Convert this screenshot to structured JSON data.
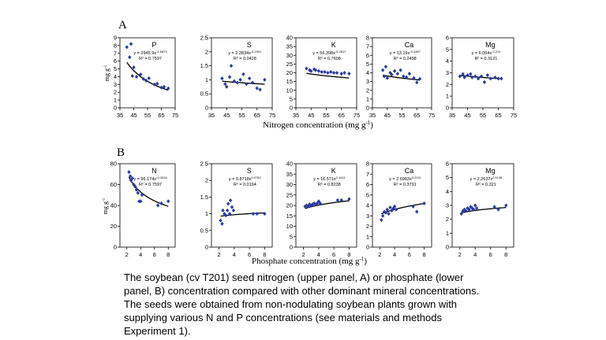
{
  "panels": [
    {
      "letter": "A",
      "xlabel": "Nitrogen concentration (mg g",
      "xlabel_sup": "-1",
      "xlabel_tail": ")"
    },
    {
      "letter": "B",
      "xlabel": "Phosphate concentration (mg g",
      "xlabel_sup": "-1",
      "xlabel_tail": ")"
    }
  ],
  "ylabel": "mg g",
  "ylabel_sup": "-1",
  "caption": [
    "The soybean (cv T201) seed nitrogen (upper panel, A) or phosphate (lower",
    "panel, B) concentration compared with other dominant mineral concentrations.",
    "The seeds were obtained from non-nodulating soybean plants grown with",
    "supplying various N and P concentrations (see materials and methods",
    "Experiment 1)."
  ],
  "chart_data": [
    {
      "type": "scatter",
      "panel": "A",
      "title": "P",
      "xlim": [
        35,
        75
      ],
      "xticks": [
        35,
        45,
        55,
        65,
        75
      ],
      "ylim": [
        0,
        9
      ],
      "yticks": [
        0,
        1,
        2,
        3,
        4,
        5,
        6,
        7,
        8,
        9
      ],
      "eq": "y = 2945.9x",
      "eq_exp": "-1.6873",
      "r2": "R² = 0.7597",
      "points": [
        [
          40,
          7.8
        ],
        [
          42,
          6.5
        ],
        [
          43,
          8.2
        ],
        [
          44,
          4.1
        ],
        [
          45,
          5.2
        ],
        [
          47,
          4.0
        ],
        [
          50,
          4.3
        ],
        [
          52,
          3.7
        ],
        [
          54,
          3.5
        ],
        [
          56,
          3.8
        ],
        [
          60,
          3.0
        ],
        [
          62,
          3.1
        ],
        [
          65,
          2.6
        ],
        [
          67,
          2.7
        ],
        [
          70,
          2.5
        ]
      ],
      "fit": {
        "a": 2945.9,
        "b": -1.6873
      }
    },
    {
      "type": "scatter",
      "panel": "A",
      "title": "S",
      "xlim": [
        35,
        75
      ],
      "xticks": [
        35,
        45,
        55,
        65,
        75
      ],
      "ylim": [
        0,
        2.5
      ],
      "yticks": [
        0,
        0.5,
        1,
        1.5,
        2,
        2.5
      ],
      "eq": "y = 2.2834x",
      "eq_exp": "-0.2341",
      "r2": "R² = 0.0428",
      "points": [
        [
          42,
          1.05
        ],
        [
          44,
          0.85
        ],
        [
          45,
          0.75
        ],
        [
          47,
          1.1
        ],
        [
          48,
          1.5
        ],
        [
          50,
          0.95
        ],
        [
          52,
          0.9
        ],
        [
          54,
          1.0
        ],
        [
          56,
          1.2
        ],
        [
          58,
          0.85
        ],
        [
          60,
          1.05
        ],
        [
          62,
          0.9
        ],
        [
          65,
          0.7
        ],
        [
          67,
          0.65
        ],
        [
          70,
          1.0
        ]
      ],
      "fit": {
        "a": 2.2834,
        "b": -0.2341
      }
    },
    {
      "type": "scatter",
      "panel": "A",
      "title": "K",
      "xlim": [
        35,
        75
      ],
      "xticks": [
        35,
        45,
        55,
        65,
        75
      ],
      "ylim": [
        0,
        40
      ],
      "yticks": [
        0,
        5,
        10,
        15,
        20,
        25,
        30,
        35,
        40
      ],
      "eq": "y = 56.398x",
      "eq_exp": "-0.2817",
      "r2": "R² = 0.7608",
      "points": [
        [
          42,
          22.5
        ],
        [
          44,
          21.5
        ],
        [
          45,
          21
        ],
        [
          47,
          22
        ],
        [
          48,
          21.5
        ],
        [
          50,
          21
        ],
        [
          52,
          20.5
        ],
        [
          54,
          20.5
        ],
        [
          56,
          20
        ],
        [
          58,
          20.5
        ],
        [
          60,
          20
        ],
        [
          62,
          20
        ],
        [
          65,
          19.5
        ],
        [
          67,
          20
        ],
        [
          70,
          19.5
        ]
      ],
      "fit": {
        "a": 56.398,
        "b": -0.2817
      }
    },
    {
      "type": "scatter",
      "panel": "A",
      "title": "Ca",
      "xlim": [
        35,
        75
      ],
      "xticks": [
        35,
        45,
        55,
        65,
        75
      ],
      "ylim": [
        0,
        8
      ],
      "yticks": [
        0,
        1,
        2,
        3,
        4,
        5,
        6,
        7,
        8
      ],
      "eq": "y = 13.19x",
      "eq_exp": "-0.3387",
      "r2": "R² = 0.2498",
      "points": [
        [
          42,
          4.3
        ],
        [
          43,
          3.6
        ],
        [
          44,
          4.7
        ],
        [
          45,
          3.4
        ],
        [
          47,
          4.0
        ],
        [
          48,
          3.8
        ],
        [
          50,
          4.2
        ],
        [
          52,
          3.9
        ],
        [
          54,
          4.3
        ],
        [
          56,
          3.6
        ],
        [
          58,
          3.5
        ],
        [
          60,
          3.9
        ],
        [
          63,
          3.4
        ],
        [
          65,
          2.9
        ],
        [
          67,
          3.3
        ]
      ],
      "fit": {
        "a": 13.19,
        "b": -0.3387
      }
    },
    {
      "type": "scatter",
      "panel": "A",
      "title": "Mg",
      "xlim": [
        35,
        75
      ],
      "xticks": [
        35,
        45,
        55,
        65,
        75
      ],
      "ylim": [
        0,
        6
      ],
      "yticks": [
        0,
        1,
        2,
        3,
        4,
        5,
        6
      ],
      "eq": "y = 6.054x",
      "eq_exp": "-0.211",
      "r2": "R² = 0.3121",
      "points": [
        [
          40,
          2.7
        ],
        [
          42,
          2.9
        ],
        [
          43,
          2.6
        ],
        [
          45,
          2.8
        ],
        [
          47,
          2.9
        ],
        [
          48,
          2.6
        ],
        [
          50,
          2.7
        ],
        [
          52,
          2.5
        ],
        [
          54,
          2.7
        ],
        [
          56,
          2.2
        ],
        [
          58,
          2.8
        ],
        [
          60,
          2.5
        ],
        [
          63,
          2.6
        ],
        [
          65,
          2.5
        ],
        [
          67,
          2.5
        ]
      ],
      "fit": {
        "a": 6.054,
        "b": -0.211
      }
    },
    {
      "type": "scatter",
      "panel": "B",
      "title": "N",
      "xlim": [
        1,
        9
      ],
      "xticks": [
        2,
        4,
        6,
        8
      ],
      "ylim": [
        0,
        80
      ],
      "yticks": [
        0,
        20,
        40,
        60,
        80
      ],
      "eq": "y = 96.174x",
      "eq_exp": "-0.4318",
      "r2": "R² = 0.7597",
      "points": [
        [
          2.3,
          72
        ],
        [
          2.5,
          68
        ],
        [
          2.6,
          64
        ],
        [
          2.8,
          66
        ],
        [
          3.0,
          60
        ],
        [
          3.2,
          58
        ],
        [
          3.4,
          55
        ],
        [
          3.6,
          52
        ],
        [
          3.8,
          44
        ],
        [
          4.0,
          44
        ],
        [
          4.2,
          50
        ],
        [
          6.5,
          40
        ],
        [
          7.0,
          42
        ],
        [
          8.0,
          44
        ]
      ],
      "fit": {
        "a": 96.174,
        "b": -0.4318
      }
    },
    {
      "type": "scatter",
      "panel": "B",
      "title": "S",
      "xlim": [
        1,
        9
      ],
      "xticks": [
        2,
        4,
        6,
        8
      ],
      "ylim": [
        0,
        2.5
      ],
      "yticks": [
        0,
        0.5,
        1,
        1.5,
        2,
        2.5
      ],
      "eq": "y = 0.8718x",
      "eq_exp": "0.0782",
      "r2": "R² = 0.0194",
      "points": [
        [
          2.2,
          0.8
        ],
        [
          2.4,
          0.7
        ],
        [
          2.5,
          1.1
        ],
        [
          2.7,
          1.0
        ],
        [
          2.9,
          0.95
        ],
        [
          3.1,
          1.1
        ],
        [
          3.2,
          1.3
        ],
        [
          3.4,
          1.0
        ],
        [
          3.5,
          1.4
        ],
        [
          3.7,
          1.2
        ],
        [
          3.9,
          1.1
        ],
        [
          6.5,
          1.0
        ],
        [
          7.0,
          1.0
        ],
        [
          8.0,
          1.0
        ]
      ],
      "fit": {
        "a": 0.8718,
        "b": 0.0782
      }
    },
    {
      "type": "scatter",
      "panel": "B",
      "title": "K",
      "xlim": [
        1,
        9
      ],
      "xticks": [
        2,
        4,
        6,
        8
      ],
      "ylim": [
        0,
        40
      ],
      "yticks": [
        0,
        5,
        10,
        15,
        20,
        25,
        30,
        35,
        40
      ],
      "eq": "y = 16.571x",
      "eq_exp": "0.1411",
      "r2": "R² = 0.8238",
      "points": [
        [
          2.2,
          19.5
        ],
        [
          2.4,
          20
        ],
        [
          2.6,
          19.5
        ],
        [
          2.8,
          20.5
        ],
        [
          3.0,
          20
        ],
        [
          3.2,
          20.5
        ],
        [
          3.4,
          21
        ],
        [
          3.6,
          20.5
        ],
        [
          3.8,
          21
        ],
        [
          4.0,
          22
        ],
        [
          4.2,
          21
        ],
        [
          6.5,
          22.5
        ],
        [
          7.0,
          22.5
        ],
        [
          8.0,
          23
        ]
      ],
      "fit": {
        "a": 16.571,
        "b": 0.1411
      }
    },
    {
      "type": "scatter",
      "panel": "B",
      "title": "Ca",
      "xlim": [
        1,
        9
      ],
      "xticks": [
        2,
        4,
        6,
        8
      ],
      "ylim": [
        0,
        8
      ],
      "yticks": [
        0,
        1,
        2,
        3,
        4,
        5,
        6,
        7,
        8
      ],
      "eq": "y = 2.6983x",
      "eq_exp": "0.2111",
      "r2": "R² = 0.3791",
      "points": [
        [
          2.2,
          2.6
        ],
        [
          2.4,
          3.0
        ],
        [
          2.6,
          3.4
        ],
        [
          2.8,
          3.3
        ],
        [
          3.0,
          3.6
        ],
        [
          3.2,
          3.2
        ],
        [
          3.4,
          3.8
        ],
        [
          3.6,
          3.5
        ],
        [
          3.8,
          3.7
        ],
        [
          4.0,
          3.9
        ],
        [
          4.2,
          3.6
        ],
        [
          6.5,
          3.9
        ],
        [
          7.0,
          3.4
        ],
        [
          8.0,
          4.2
        ]
      ],
      "fit": {
        "a": 2.6983,
        "b": 0.2111
      }
    },
    {
      "type": "scatter",
      "panel": "B",
      "title": "Mg",
      "xlim": [
        1,
        9
      ],
      "xticks": [
        2,
        4,
        6,
        8
      ],
      "ylim": [
        0,
        6
      ],
      "yticks": [
        0,
        1,
        2,
        3,
        4,
        5,
        6
      ],
      "eq": "y = 2.2637x",
      "eq_exp": "0.1108",
      "r2": "R² = 0.321",
      "points": [
        [
          2.2,
          2.4
        ],
        [
          2.4,
          2.6
        ],
        [
          2.6,
          2.7
        ],
        [
          2.8,
          2.6
        ],
        [
          3.0,
          2.8
        ],
        [
          3.2,
          2.7
        ],
        [
          3.4,
          2.9
        ],
        [
          3.6,
          2.8
        ],
        [
          3.8,
          2.7
        ],
        [
          4.0,
          3.0
        ],
        [
          4.2,
          2.8
        ],
        [
          6.5,
          2.9
        ],
        [
          7.0,
          2.7
        ],
        [
          8.0,
          3.0
        ]
      ],
      "fit": {
        "a": 2.2637,
        "b": 0.1108
      }
    }
  ]
}
